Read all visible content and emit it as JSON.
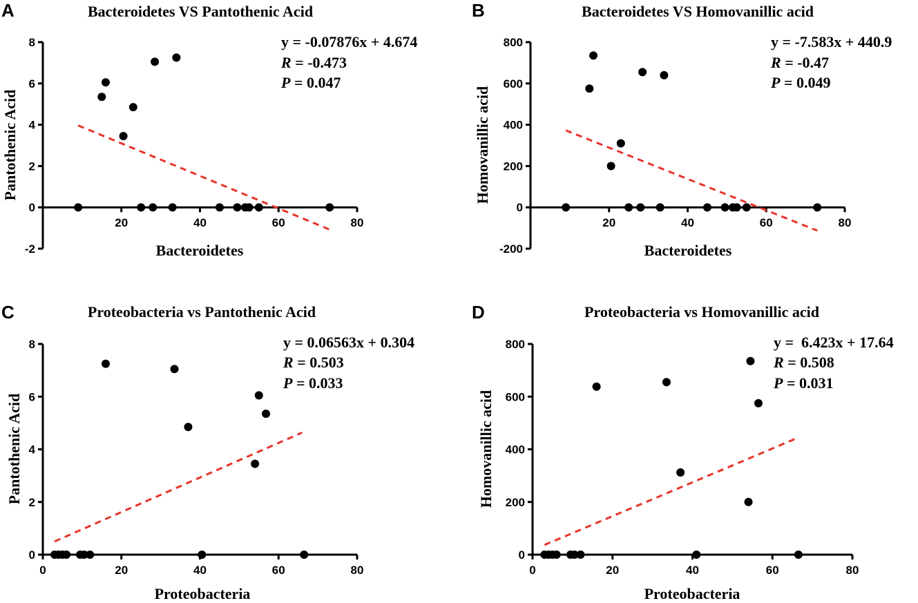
{
  "figure": {
    "panels": [
      {
        "letter": "A",
        "title": "Bacteroidetes VS Pantothenic Acid",
        "equation": "y = -0.07876x + 4.674",
        "r_label": "R",
        "r_value": " = -0.473",
        "p_label": "P",
        "p_value": " = 0.047"
      },
      {
        "letter": "B",
        "title": "Bacteroidetes VS Homovanillic acid",
        "equation": "y = -7.583x + 440.9",
        "r_label": "R",
        "r_value": " = -0.47",
        "p_label": "P",
        "p_value": " = 0.049"
      },
      {
        "letter": "C",
        "title": "Proteobacteria vs Pantothenic Acid",
        "equation": "y = 0.06563x + 0.304",
        "r_label": "R",
        "r_value": " = 0.503",
        "p_label": "P",
        "p_value": " = 0.033"
      },
      {
        "letter": "D",
        "title": "Proteobacteria vs Homovanillic acid",
        "equation": "y =  6.423x + 17.64",
        "r_label": "R",
        "r_value": " = 0.508",
        "p_label": "P",
        "p_value": " = 0.031"
      }
    ]
  },
  "chart_data": [
    {
      "type": "scatter",
      "title": "Bacteroidetes VS Pantothenic Acid",
      "xlabel": "Bacteroidetes",
      "ylabel": "Pantothenic Acid",
      "xlim": [
        0,
        80
      ],
      "ylim": [
        -2,
        8
      ],
      "xticks": [
        20,
        40,
        60,
        80
      ],
      "yticks": [
        -2,
        0,
        2,
        4,
        6,
        8
      ],
      "tick_labels_x": [
        "20",
        "40",
        "60",
        "80"
      ],
      "tick_labels_y": [
        "-2",
        "0",
        "2",
        "4",
        "6",
        "8"
      ],
      "x": [
        9,
        15,
        16,
        20.5,
        23,
        28.5,
        34,
        25,
        28,
        33,
        45,
        49.5,
        51.5,
        52.5,
        55,
        73
      ],
      "y": [
        0,
        5.35,
        6.05,
        3.45,
        4.85,
        7.05,
        7.25,
        0,
        0,
        0,
        0,
        0,
        0,
        0,
        0,
        0
      ],
      "fit": {
        "slope": -0.07876,
        "intercept": 4.674,
        "x_range": [
          9,
          73
        ]
      }
    },
    {
      "type": "scatter",
      "title": "Bacteroidetes VS Homovanillic acid",
      "xlabel": "Bacteroidetes",
      "ylabel": "Homovanillic acid",
      "xlim": [
        0,
        80
      ],
      "ylim": [
        -200,
        800
      ],
      "xticks": [
        20,
        40,
        60,
        80
      ],
      "yticks": [
        -200,
        0,
        200,
        400,
        600,
        800
      ],
      "tick_labels_x": [
        "20",
        "40",
        "60",
        "80"
      ],
      "tick_labels_y": [
        "-200",
        "0",
        "200",
        "400",
        "600",
        "800"
      ],
      "x": [
        9,
        15,
        16,
        20.5,
        23,
        28.5,
        34,
        25,
        28,
        33,
        45,
        49.5,
        51.5,
        52.5,
        55,
        73
      ],
      "y": [
        0,
        575,
        735,
        200,
        310,
        655,
        640,
        0,
        0,
        0,
        0,
        0,
        0,
        0,
        0,
        0
      ],
      "fit": {
        "slope": -7.583,
        "intercept": 440.9,
        "x_range": [
          9,
          73
        ]
      }
    },
    {
      "type": "scatter",
      "title": "Proteobacteria vs Pantothenic Acid",
      "xlabel": "Proteobacteria",
      "ylabel": "Pantothenic Acid",
      "xlim": [
        0,
        80
      ],
      "ylim": [
        0,
        8
      ],
      "xticks": [
        0,
        20,
        40,
        60,
        80
      ],
      "yticks": [
        0,
        2,
        4,
        6,
        8
      ],
      "tick_labels_x": [
        "0",
        "20",
        "40",
        "60",
        "80"
      ],
      "tick_labels_y": [
        "0",
        "2",
        "4",
        "6",
        "8"
      ],
      "x": [
        16,
        33.5,
        37,
        55,
        56.8,
        54,
        3,
        4,
        5,
        6,
        9.5,
        10.5,
        12,
        40.5,
        66.5
      ],
      "y": [
        7.25,
        7.05,
        4.85,
        6.05,
        5.35,
        3.45,
        0,
        0,
        0,
        0,
        0,
        0,
        0,
        0,
        0
      ],
      "fit": {
        "slope": 0.06563,
        "intercept": 0.304,
        "x_range": [
          3,
          66
        ]
      }
    },
    {
      "type": "scatter",
      "title": "Proteobacteria vs Homovanillic acid",
      "xlabel": "Proteobacteria",
      "ylabel": "Homovanillic acid",
      "xlim": [
        0,
        80
      ],
      "ylim": [
        0,
        800
      ],
      "xticks": [
        0,
        20,
        40,
        60,
        80
      ],
      "yticks": [
        0,
        200,
        400,
        600,
        800
      ],
      "tick_labels_x": [
        "0",
        "20",
        "40",
        "60",
        "80"
      ],
      "tick_labels_y": [
        "0",
        "200",
        "400",
        "600",
        "800"
      ],
      "x": [
        16,
        33.5,
        37,
        54.5,
        56.5,
        54,
        3,
        4,
        5,
        6,
        9.5,
        10.5,
        12,
        41,
        66.5
      ],
      "y": [
        638,
        655,
        312,
        735,
        575,
        200,
        0,
        0,
        0,
        0,
        0,
        0,
        0,
        0,
        0
      ],
      "fit": {
        "slope": 6.423,
        "intercept": 17.64,
        "x_range": [
          3,
          66
        ]
      }
    }
  ]
}
